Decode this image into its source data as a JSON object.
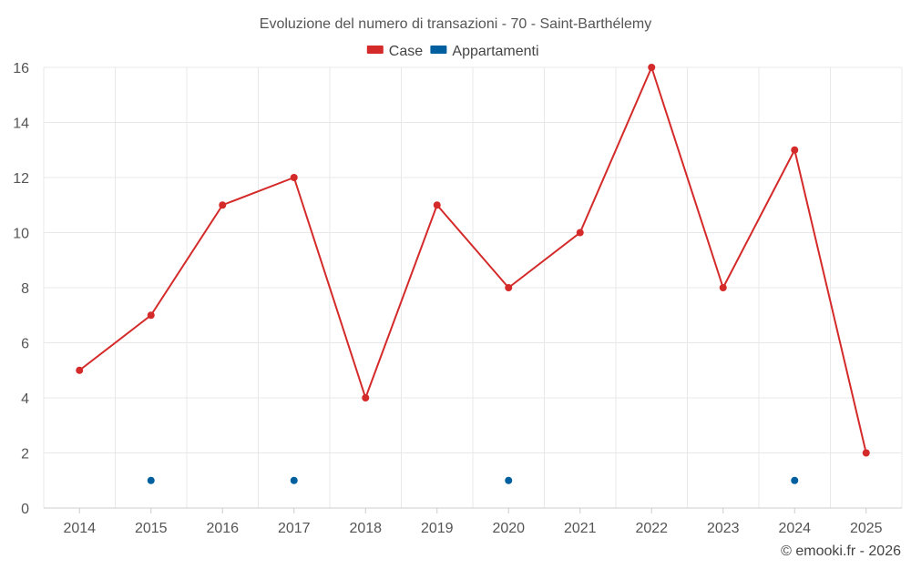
{
  "chart_data": {
    "type": "line",
    "title": "Evoluzione del numero di transazioni - 70 - Saint-Barthélemy",
    "x": [
      "2014",
      "2015",
      "2016",
      "2017",
      "2018",
      "2019",
      "2020",
      "2021",
      "2022",
      "2023",
      "2024",
      "2025"
    ],
    "ylim": [
      0,
      16
    ],
    "yticks": [
      0,
      2,
      4,
      6,
      8,
      10,
      12,
      14,
      16
    ],
    "grid": true,
    "legend_position": "top-center",
    "series": [
      {
        "name": "Case",
        "color": "#d42a2a",
        "style": "line-markers",
        "values": [
          5,
          7,
          11,
          12,
          4,
          11,
          8,
          10,
          16,
          8,
          13,
          2
        ]
      },
      {
        "name": "Appartamenti",
        "color": "#005f9e",
        "style": "markers",
        "values": [
          null,
          1,
          null,
          1,
          null,
          null,
          1,
          null,
          null,
          null,
          1,
          null
        ]
      }
    ]
  },
  "credit": "© emooki.fr - 2026"
}
